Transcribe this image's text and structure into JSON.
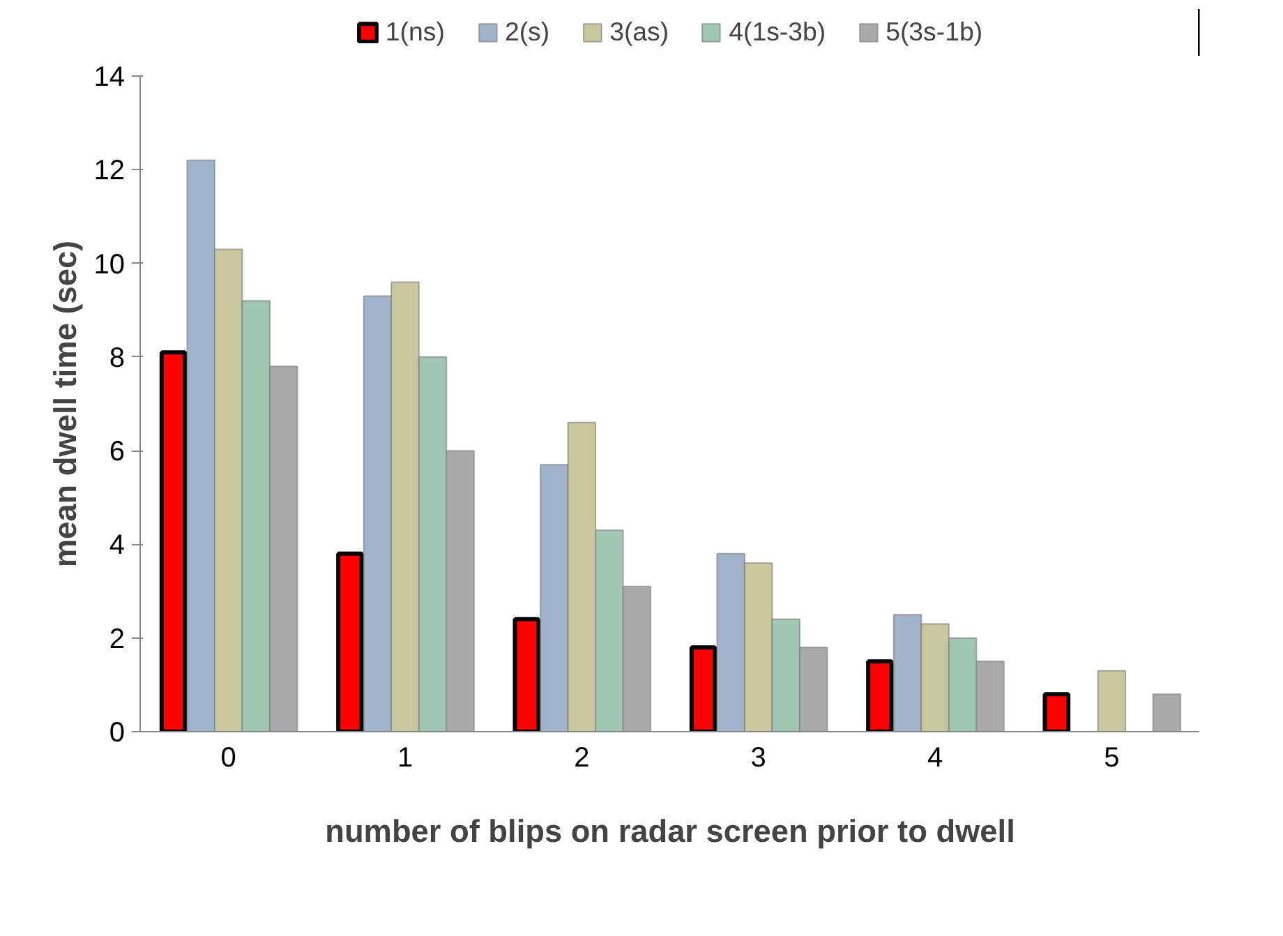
{
  "chart_data": {
    "type": "bar",
    "xlabel": "number of blips on radar screen prior to dwell",
    "ylabel": "mean dwell time (sec)",
    "categories": [
      "0",
      "1",
      "2",
      "3",
      "4",
      "5"
    ],
    "series": [
      {
        "name": "1(ns)",
        "color": "#ff0000",
        "values": [
          8.1,
          3.8,
          2.4,
          1.8,
          1.5,
          0.8
        ]
      },
      {
        "name": "2(s)",
        "color": "#a0b3cb",
        "values": [
          12.2,
          9.3,
          5.7,
          3.8,
          2.5,
          null
        ]
      },
      {
        "name": "3(as)",
        "color": "#c8c79e",
        "values": [
          10.3,
          9.6,
          6.6,
          3.6,
          2.3,
          1.3
        ]
      },
      {
        "name": "4(1s-3b)",
        "color": "#a0c7b4",
        "values": [
          9.2,
          8.0,
          4.3,
          2.4,
          2.0,
          null
        ]
      },
      {
        "name": "5(3s-1b)",
        "color": "#aaaaaa",
        "values": [
          7.8,
          6.0,
          3.1,
          1.8,
          1.5,
          0.8
        ]
      }
    ],
    "ylim": [
      0,
      14
    ],
    "yticks": [
      0,
      2,
      4,
      6,
      8,
      10,
      12,
      14
    ],
    "grid": false,
    "legend": "top"
  }
}
